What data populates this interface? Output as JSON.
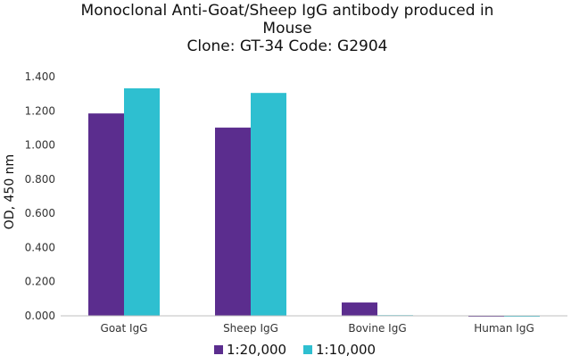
{
  "chart_data": {
    "type": "bar",
    "title_lines": [
      "Monoclonal Anti-Goat/Sheep IgG antibody produced in",
      "Mouse",
      "Clone: GT-34  Code: G2904"
    ],
    "xlabel": "",
    "ylabel": "OD, 450 nm",
    "categories": [
      "Goat IgG",
      "Sheep IgG",
      "Bovine IgG",
      "Human IgG"
    ],
    "series": [
      {
        "name": "1:20,000",
        "values": [
          1.185,
          1.102,
          0.078,
          -0.005
        ],
        "color": "#5b2d8e"
      },
      {
        "name": "1:10,000",
        "values": [
          1.332,
          1.305,
          0.004,
          0.0
        ],
        "color": "#2ebfd0"
      }
    ],
    "ylim": [
      0,
      1.4
    ],
    "yticks": [
      "0.000",
      "0.200",
      "0.400",
      "0.600",
      "0.800",
      "1.000",
      "1.200",
      "1.400"
    ],
    "grid": false,
    "legend_position": "bottom"
  }
}
